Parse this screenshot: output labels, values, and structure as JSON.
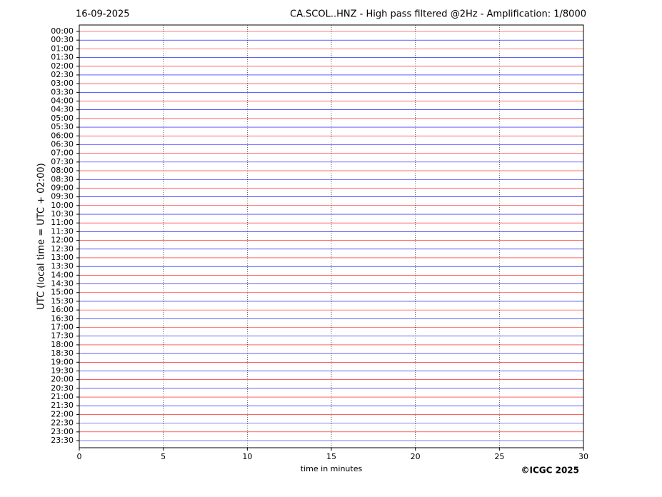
{
  "chart_data": {
    "type": "helicorder",
    "date": "16-09-2025",
    "title": "CA.SCOL..HNZ - High pass filtered @2Hz - Amplification: 1/8000",
    "ylabel": "UTC (local time = UTC + 02:00)",
    "xlabel": "time in minutes",
    "copyright": "©ICGC 2025",
    "categories": [
      "00:00",
      "00:30",
      "01:00",
      "01:30",
      "02:00",
      "02:30",
      "03:00",
      "03:30",
      "04:00",
      "04:30",
      "05:00",
      "05:30",
      "06:00",
      "06:30",
      "07:00",
      "07:30",
      "08:00",
      "08:30",
      "09:00",
      "09:30",
      "10:00",
      "10:30",
      "11:00",
      "11:30",
      "12:00",
      "12:30",
      "13:00",
      "13:30",
      "14:00",
      "14:30",
      "15:00",
      "15:30",
      "16:00",
      "16:30",
      "17:00",
      "17:30",
      "18:00",
      "18:30",
      "19:00",
      "19:30",
      "20:00",
      "20:30",
      "21:00",
      "21:30",
      "22:00",
      "22:30",
      "23:00",
      "23:30"
    ],
    "colors": [
      "#ff0000",
      "#0000ff"
    ],
    "xlim": [
      0,
      30
    ],
    "xticks": [
      0,
      5,
      10,
      15,
      20,
      25,
      30
    ],
    "grid": true
  }
}
